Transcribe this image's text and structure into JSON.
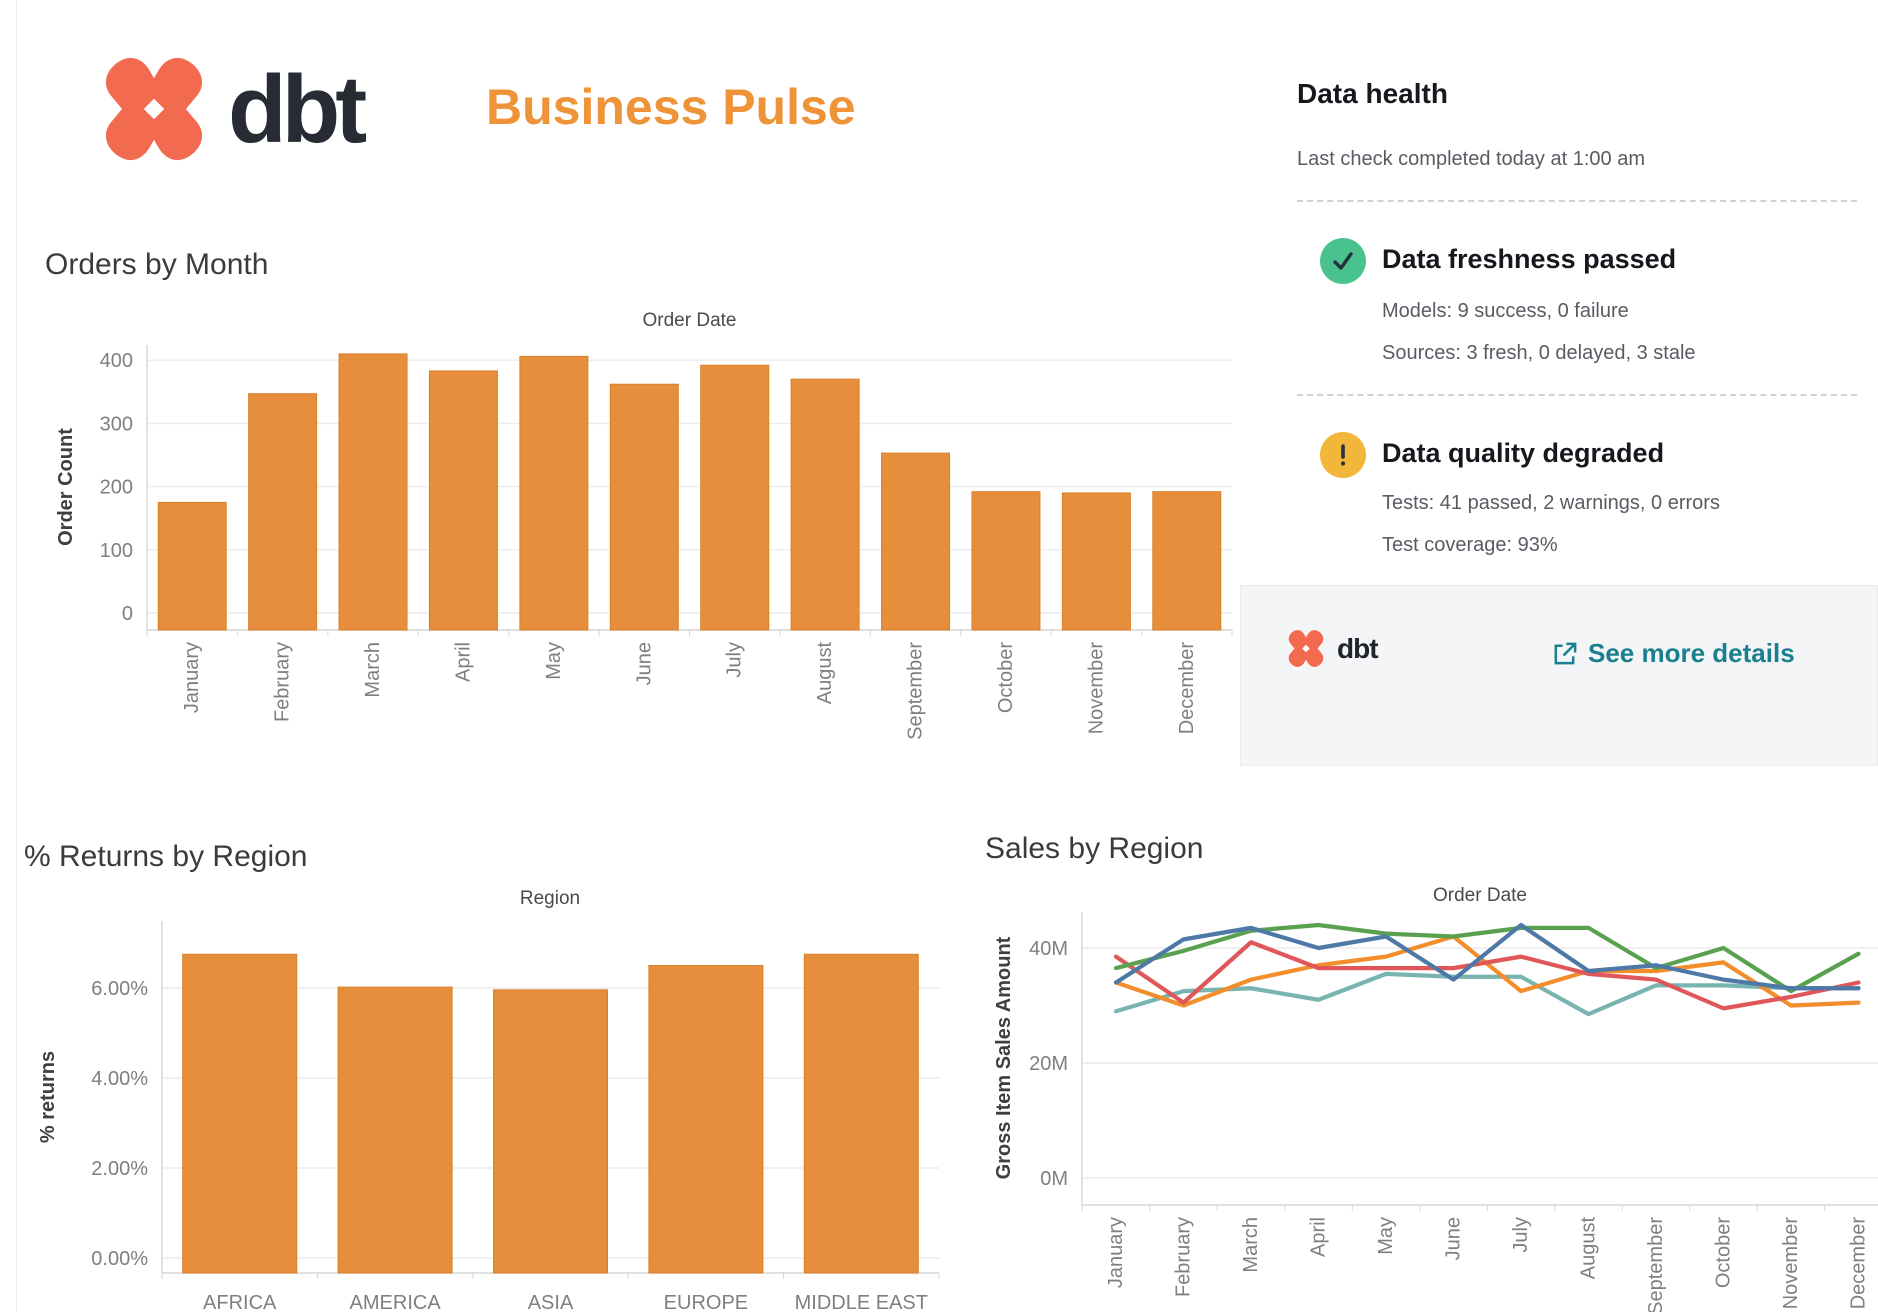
{
  "header": {
    "brand": "dbt",
    "title": "Business Pulse"
  },
  "data_health": {
    "title": "Data health",
    "last_check": "Last check completed today at 1:00 am",
    "sections": [
      {
        "icon": "check-circle",
        "icon_color": "#4ac28e",
        "title": "Data freshness passed",
        "lines": [
          "Models: 9 success, 0 failure",
          "Sources: 3 fresh, 0 delayed, 3 stale"
        ]
      },
      {
        "icon": "warning-circle",
        "icon_color": "#f2b63a",
        "title": "Data quality degraded",
        "lines": [
          "Tests: 41 passed, 2 warnings, 0 errors",
          "Test coverage: 93%"
        ]
      }
    ],
    "footer": {
      "brand": "dbt",
      "link_label": "See more details"
    }
  },
  "chart_data": [
    {
      "id": "orders",
      "type": "bar",
      "title": "Orders by Month",
      "axis_top_label": "Order Date",
      "ylabel": "Order Count",
      "categories": [
        "January",
        "February",
        "March",
        "April",
        "May",
        "June",
        "July",
        "August",
        "September",
        "October",
        "November",
        "December"
      ],
      "values": [
        175,
        347,
        410,
        383,
        406,
        362,
        392,
        370,
        253,
        192,
        190,
        192
      ],
      "yticks": [
        0,
        100,
        200,
        300,
        400
      ],
      "ytick_labels": [
        "0",
        "100",
        "200",
        "300",
        "400"
      ],
      "ylim": [
        0,
        450
      ],
      "grid": true,
      "bar_color": "#e78e3d",
      "bar_border_color": "#d8802c",
      "rotated_x_labels": true
    },
    {
      "id": "returns",
      "type": "bar",
      "title": "% Returns by Region",
      "axis_top_label": "Region",
      "ylabel": "% returns",
      "categories": [
        "AFRICA",
        "AMERICA",
        "ASIA",
        "EUROPE",
        "MIDDLE EAST"
      ],
      "values": [
        6.75,
        6.02,
        5.96,
        6.5,
        6.75
      ],
      "yticks": [
        0,
        2,
        4,
        6
      ],
      "ytick_labels": [
        "0.00%",
        "2.00%",
        "4.00%",
        "6.00%"
      ],
      "ylim": [
        0,
        7.8
      ],
      "grid": true,
      "bar_color": "#e78e3d",
      "bar_border_color": "#d8802c",
      "rotated_x_labels": false
    },
    {
      "id": "sales",
      "type": "line",
      "title": "Sales by Region",
      "axis_top_label": "Order Date",
      "ylabel": "Gross Item Sales Amount",
      "categories": [
        "January",
        "February",
        "March",
        "April",
        "May",
        "June",
        "July",
        "August",
        "September",
        "October",
        "November",
        "December"
      ],
      "legend_visible": false,
      "unit": "M",
      "yticks": [
        0,
        20,
        40
      ],
      "ytick_labels": [
        "0M",
        "20M",
        "40M"
      ],
      "ylim": [
        0,
        46.5
      ],
      "grid": true,
      "series": [
        {
          "name": "teal",
          "color": "#79b5b0",
          "values": [
            29,
            32.5,
            33,
            31,
            35.5,
            35,
            35,
            28.5,
            33.5,
            33.5,
            33,
            33
          ]
        },
        {
          "name": "orange",
          "color": "#f28e2b",
          "values": [
            34,
            30,
            34.5,
            37,
            38.5,
            42,
            32.5,
            36,
            36,
            37.5,
            30,
            30.5
          ]
        },
        {
          "name": "red",
          "color": "#e05759",
          "values": [
            38.5,
            30.5,
            41,
            36.5,
            36.5,
            36.5,
            38.5,
            35.5,
            34.5,
            29.5,
            31.5,
            34
          ]
        },
        {
          "name": "green",
          "color": "#59a14f",
          "values": [
            36.5,
            39.5,
            43,
            44,
            42.5,
            42,
            43.5,
            43.5,
            36.5,
            40,
            32.5,
            39
          ]
        },
        {
          "name": "blue",
          "color": "#4e79a7",
          "values": [
            34,
            41.5,
            43.5,
            40,
            42,
            34.5,
            44,
            36,
            37,
            34.5,
            33,
            33
          ]
        }
      ]
    }
  ],
  "colors": {
    "brand_coral": "#f26a4f",
    "brand_dark": "#262b34",
    "title_orange": "#ef9338",
    "link_teal": "#1a7f8e",
    "passed_green": "#4ac28e",
    "warning_yellow": "#f2b63a"
  }
}
